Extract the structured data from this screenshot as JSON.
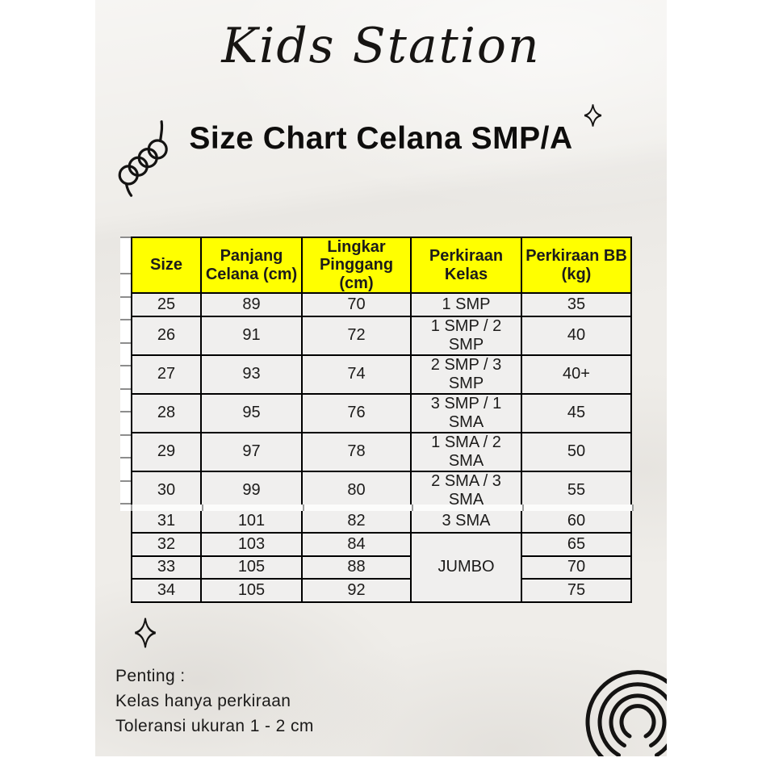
{
  "brand": {
    "name": "Kids Station"
  },
  "header": {
    "title": "Size Chart Celana SMP/A"
  },
  "table": {
    "header_bg": "#ffff00",
    "cell_bg": "#f0efee",
    "border_color": "#000000",
    "columns": [
      "Size",
      "Panjang\nCelana (cm)",
      "Lingkar\nPinggang (cm)",
      "Perkiraan\nKelas",
      "Perkiraan BB\n(kg)"
    ],
    "rows": [
      {
        "size": "25",
        "panjang": "89",
        "lingkar": "70",
        "kelas": "1 SMP",
        "bb": "35"
      },
      {
        "size": "26",
        "panjang": "91",
        "lingkar": "72",
        "kelas": "1 SMP / 2 SMP",
        "bb": "40"
      },
      {
        "size": "27",
        "panjang": "93",
        "lingkar": "74",
        "kelas": "2 SMP / 3 SMP",
        "bb": "40+"
      },
      {
        "size": "28",
        "panjang": "95",
        "lingkar": "76",
        "kelas": "3 SMP / 1 SMA",
        "bb": "45"
      },
      {
        "size": "29",
        "panjang": "97",
        "lingkar": "78",
        "kelas": "1 SMA / 2 SMA",
        "bb": "50"
      },
      {
        "size": "30",
        "panjang": "99",
        "lingkar": "80",
        "kelas": "2 SMA / 3 SMA",
        "bb": "55"
      },
      {
        "size": "31",
        "panjang": "101",
        "lingkar": "82",
        "kelas": "3 SMA",
        "bb": "60"
      },
      {
        "size": "32",
        "panjang": "103",
        "lingkar": "84",
        "kelas": "JUMBO",
        "kelas_rowspan": 3,
        "bb": "65"
      },
      {
        "size": "33",
        "panjang": "105",
        "lingkar": "88",
        "kelas": null,
        "bb": "70"
      },
      {
        "size": "34",
        "panjang": "105",
        "lingkar": "92",
        "kelas": null,
        "bb": "75"
      }
    ]
  },
  "notes": {
    "line1": "Penting :",
    "line2": "Kelas hanya perkiraan",
    "line3": "Toleransi ukuran 1 - 2 cm"
  },
  "decorations": {
    "paper_color": "#efede9",
    "ink_color": "#141312",
    "icons": [
      "spiral-squiggle-icon",
      "sparkle-icon",
      "sparkle-icon",
      "rainbow-icon"
    ]
  }
}
